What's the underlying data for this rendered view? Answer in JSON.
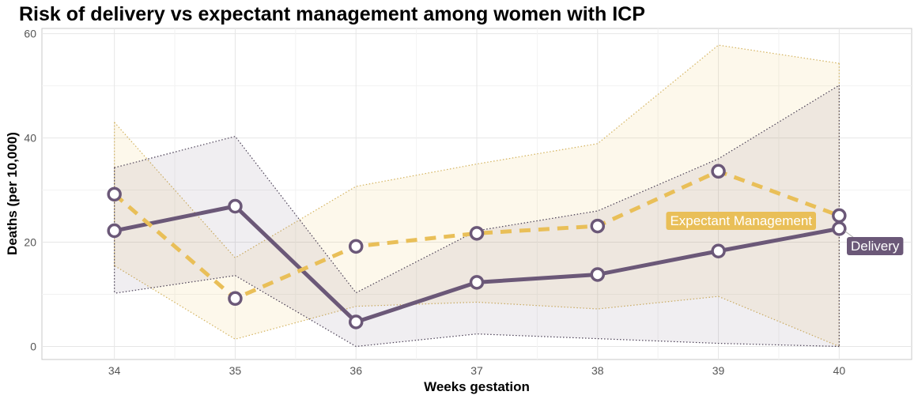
{
  "chart_data": {
    "type": "line",
    "title": "Risk of delivery vs expectant management among women with ICP",
    "xlabel": "Weeks gestation",
    "ylabel": "Deaths (per 10,000)",
    "x": [
      34,
      35,
      36,
      37,
      38,
      39,
      40
    ],
    "xlim": [
      33.4,
      40.6
    ],
    "ylim": [
      -2.5,
      61
    ],
    "yticks": [
      0,
      20,
      40,
      60
    ],
    "grid": true,
    "legend": "none (direct labels at line ends)",
    "series": [
      {
        "name": "Delivery",
        "color": "#6b5878",
        "line_style": "solid",
        "values": [
          22.2,
          26.9,
          4.7,
          12.3,
          13.8,
          18.3,
          22.6
        ],
        "lower": [
          10.2,
          13.6,
          0.0,
          2.4,
          1.5,
          0.6,
          0.0
        ],
        "upper": [
          34.3,
          40.3,
          10.3,
          22.2,
          26.0,
          36.0,
          50.1
        ]
      },
      {
        "name": "Expectant Management",
        "color": "#e9bf58",
        "line_style": "dashed",
        "values": [
          29.2,
          9.2,
          19.2,
          21.7,
          23.1,
          33.6,
          25.1
        ],
        "lower": [
          15.5,
          1.4,
          7.7,
          8.5,
          7.2,
          9.6,
          0.0
        ],
        "upper": [
          43.0,
          17.0,
          30.7,
          35.0,
          38.9,
          57.8,
          54.3
        ]
      }
    ]
  }
}
